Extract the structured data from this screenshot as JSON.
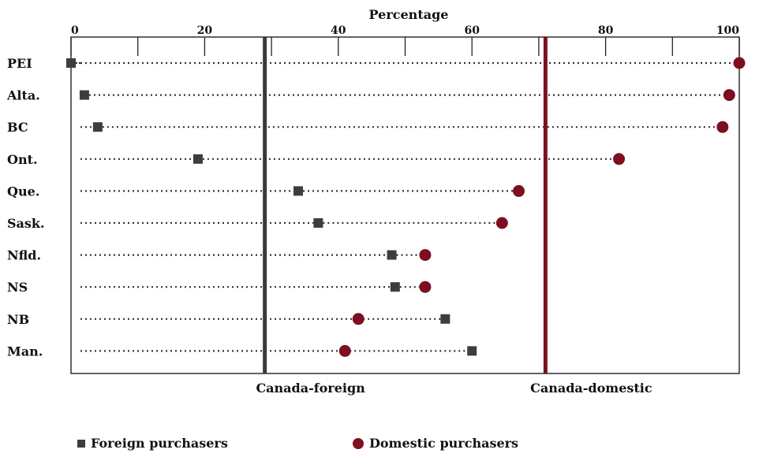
{
  "chart_data": {
    "type": "scatter",
    "title": "",
    "xlabel": "Percentage",
    "ylabel": "",
    "xlim": [
      0,
      100
    ],
    "xticks": [
      0,
      20,
      40,
      60,
      80,
      100
    ],
    "grid": false,
    "categories": [
      "PEI",
      "Alta.",
      "BC",
      "Ont.",
      "Que.",
      "Sask.",
      "Nfld.",
      "NS",
      "NB",
      "Man."
    ],
    "series": [
      {
        "name": "Foreign purchasers",
        "marker": "square",
        "color": "#3d3d3d",
        "values": [
          0,
          2,
          4,
          19,
          34,
          37,
          48,
          48.5,
          56,
          60
        ]
      },
      {
        "name": "Domestic purchasers",
        "marker": "circle",
        "color": "#7d0f1e",
        "values": [
          100,
          98.5,
          97.5,
          82,
          67,
          64.5,
          53,
          53,
          43,
          41
        ]
      }
    ],
    "reference_lines": [
      {
        "label": "Canada-foreign",
        "value": 29,
        "color": "#3a3a3a"
      },
      {
        "label": "Canada-domestic",
        "value": 71,
        "color": "#7d0f1e"
      }
    ],
    "legend": "bottom"
  },
  "legend": {
    "foreign": "Foreign purchasers",
    "domestic": "Domestic purchasers"
  }
}
